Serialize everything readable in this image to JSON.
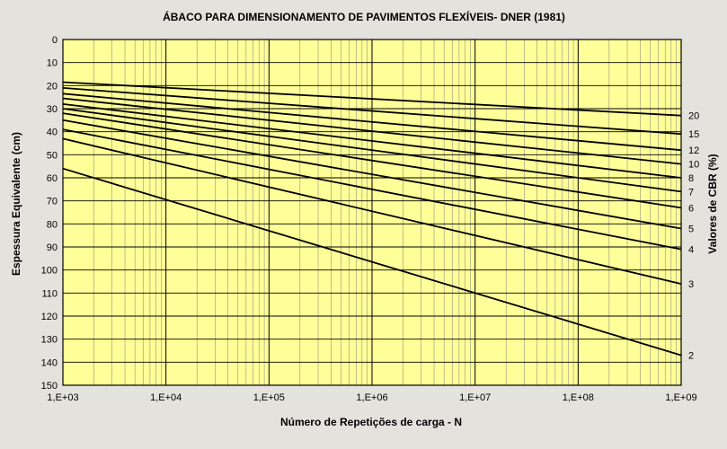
{
  "chart_data": {
    "type": "line",
    "title": "ÁBACO PARA DIMENSIONAMENTO DE PAVIMENTOS FLEXÍVEIS- DNER (1981)",
    "xlabel": "Número de Repetições de carga - N",
    "ylabel": "Espessura Equivalente (cm)",
    "y2label": "Valores de CBR (%)",
    "x_scale": "log",
    "xlim": [
      1000,
      1000000000
    ],
    "ylim": [
      0,
      150
    ],
    "y_inverted": true,
    "grid": true,
    "x_ticks": [
      {
        "value": 1000,
        "label": "1,E+03"
      },
      {
        "value": 10000,
        "label": "1,E+04"
      },
      {
        "value": 100000,
        "label": "1,E+05"
      },
      {
        "value": 1000000,
        "label": "1,E+06"
      },
      {
        "value": 10000000,
        "label": "1,E+07"
      },
      {
        "value": 100000000,
        "label": "1,E+08"
      },
      {
        "value": 1000000000,
        "label": "1,E+09"
      }
    ],
    "y_ticks": [
      0,
      10,
      20,
      30,
      40,
      50,
      60,
      70,
      80,
      90,
      100,
      110,
      120,
      130,
      140,
      150
    ],
    "series": [
      {
        "name": "20",
        "x": [
          1000,
          1000000000
        ],
        "y": [
          18.5,
          33
        ]
      },
      {
        "name": "15",
        "x": [
          1000,
          1000000000
        ],
        "y": [
          21,
          41
        ]
      },
      {
        "name": "12",
        "x": [
          1000,
          1000000000
        ],
        "y": [
          23.5,
          48
        ]
      },
      {
        "name": "10",
        "x": [
          1000,
          1000000000
        ],
        "y": [
          25.5,
          54
        ]
      },
      {
        "name": "8",
        "x": [
          1000,
          1000000000
        ],
        "y": [
          28,
          60
        ]
      },
      {
        "name": "7",
        "x": [
          1000,
          1000000000
        ],
        "y": [
          30,
          66
        ]
      },
      {
        "name": "6",
        "x": [
          1000,
          1000000000
        ],
        "y": [
          32,
          73
        ]
      },
      {
        "name": "5",
        "x": [
          1000,
          1000000000
        ],
        "y": [
          35,
          82
        ]
      },
      {
        "name": "4",
        "x": [
          1000,
          1000000000
        ],
        "y": [
          39,
          91
        ]
      },
      {
        "name": "3",
        "x": [
          1000,
          1000000000
        ],
        "y": [
          43,
          106
        ]
      },
      {
        "name": "2",
        "x": [
          1000,
          1000000000
        ],
        "y": [
          56,
          137
        ]
      }
    ]
  },
  "colors": {
    "page_background": "#e4e2dd",
    "plot_background": "#ffff99",
    "grid_line": "#000000",
    "series_line": "#000000"
  }
}
